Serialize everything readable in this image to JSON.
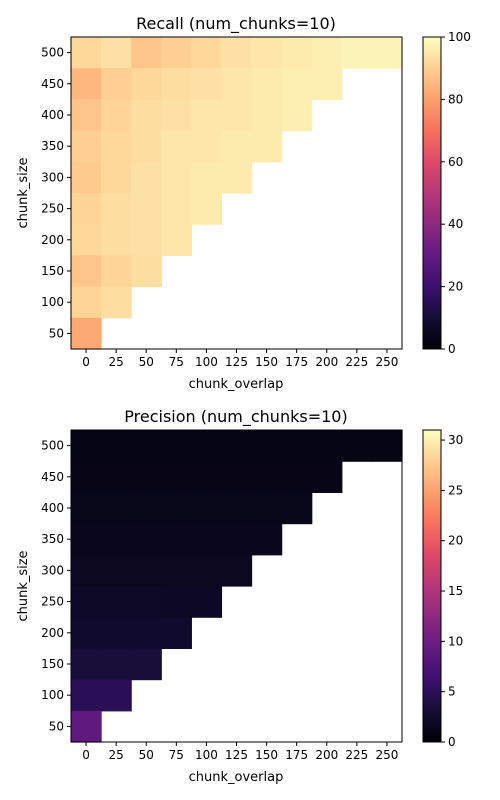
{
  "chart_data": [
    {
      "type": "heatmap",
      "title": "Recall (num_chunks=10)",
      "xlabel": "chunk_overlap",
      "ylabel": "chunk_size",
      "x": [
        0,
        25,
        50,
        75,
        100,
        125,
        150,
        175,
        200,
        225,
        250
      ],
      "y": [
        500,
        450,
        400,
        350,
        300,
        250,
        200,
        150,
        100,
        50
      ],
      "x_ticks": [
        "0",
        "25",
        "50",
        "75",
        "100",
        "125",
        "150",
        "175",
        "200",
        "225",
        "250"
      ],
      "y_ticks": [
        "500",
        "450",
        "400",
        "350",
        "300",
        "250",
        "200",
        "150",
        "100",
        "50"
      ],
      "colormap": "magma",
      "zlim": [
        0,
        100
      ],
      "colorbar_ticks": [
        "0",
        "20",
        "40",
        "60",
        "80",
        "100"
      ],
      "values": [
        [
          92,
          94,
          88,
          90,
          92,
          94,
          95,
          96,
          97,
          98,
          98
        ],
        [
          85,
          90,
          92,
          93,
          94,
          95,
          96,
          97,
          97,
          null,
          null
        ],
        [
          88,
          91,
          93,
          94,
          95,
          95,
          96,
          97,
          null,
          null,
          null
        ],
        [
          90,
          92,
          93,
          95,
          95,
          96,
          96,
          null,
          null,
          null,
          null
        ],
        [
          89,
          92,
          94,
          95,
          96,
          96,
          null,
          null,
          null,
          null,
          null
        ],
        [
          91,
          93,
          94,
          95,
          96,
          null,
          null,
          null,
          null,
          null,
          null
        ],
        [
          92,
          93,
          94,
          95,
          null,
          null,
          null,
          null,
          null,
          null,
          null
        ],
        [
          88,
          91,
          93,
          null,
          null,
          null,
          null,
          null,
          null,
          null,
          null
        ],
        [
          91,
          93,
          null,
          null,
          null,
          null,
          null,
          null,
          null,
          null,
          null
        ],
        [
          82,
          null,
          null,
          null,
          null,
          null,
          null,
          null,
          null,
          null,
          null
        ]
      ]
    },
    {
      "type": "heatmap",
      "title": "Precision (num_chunks=10)",
      "xlabel": "chunk_overlap",
      "ylabel": "chunk_size",
      "x": [
        0,
        25,
        50,
        75,
        100,
        125,
        150,
        175,
        200,
        225,
        250
      ],
      "y": [
        500,
        450,
        400,
        350,
        300,
        250,
        200,
        150,
        100,
        50
      ],
      "x_ticks": [
        "0",
        "25",
        "50",
        "75",
        "100",
        "125",
        "150",
        "175",
        "200",
        "225",
        "250"
      ],
      "y_ticks": [
        "500",
        "450",
        "400",
        "350",
        "300",
        "250",
        "200",
        "150",
        "100",
        "50"
      ],
      "colormap": "magma",
      "zlim": [
        0,
        31
      ],
      "colorbar_ticks": [
        "0",
        "5",
        "10",
        "15",
        "20",
        "25",
        "30"
      ],
      "values": [
        [
          1.0,
          1.0,
          1.0,
          1.0,
          1.0,
          1.0,
          1.0,
          1.0,
          1.0,
          1.0,
          1.0
        ],
        [
          1.1,
          1.1,
          1.1,
          1.1,
          1.1,
          1.1,
          1.1,
          1.1,
          1.1,
          null,
          null
        ],
        [
          1.3,
          1.3,
          1.3,
          1.3,
          1.3,
          1.3,
          1.3,
          1.3,
          null,
          null,
          null
        ],
        [
          1.5,
          1.5,
          1.5,
          1.5,
          1.5,
          1.5,
          1.5,
          null,
          null,
          null,
          null
        ],
        [
          1.7,
          1.7,
          1.7,
          1.7,
          1.7,
          1.7,
          null,
          null,
          null,
          null,
          null
        ],
        [
          2.1,
          2.1,
          2.1,
          2.0,
          2.0,
          null,
          null,
          null,
          null,
          null,
          null
        ],
        [
          2.5,
          2.5,
          2.5,
          2.5,
          null,
          null,
          null,
          null,
          null,
          null,
          null
        ],
        [
          3.3,
          3.3,
          3.3,
          null,
          null,
          null,
          null,
          null,
          null,
          null,
          null
        ],
        [
          4.8,
          4.8,
          null,
          null,
          null,
          null,
          null,
          null,
          null,
          null,
          null
        ],
        [
          9.0,
          null,
          null,
          null,
          null,
          null,
          null,
          null,
          null,
          null,
          null
        ]
      ]
    }
  ]
}
